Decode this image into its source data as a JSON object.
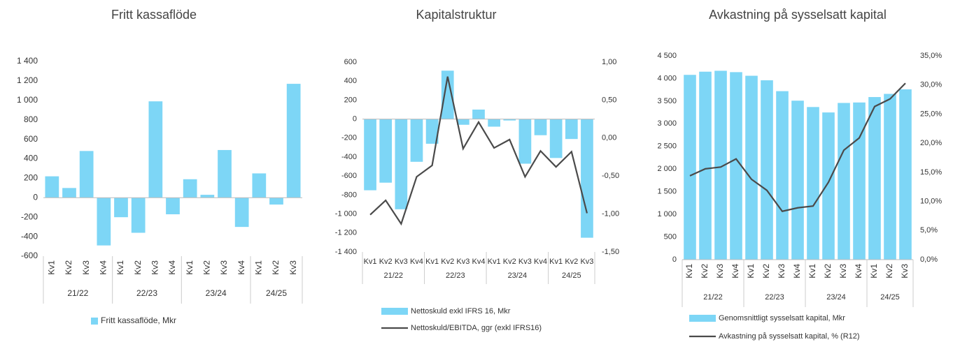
{
  "chart_data": [
    {
      "type": "bar",
      "title": "Fritt kassaflöde",
      "category_groups": [
        {
          "name": "21/22",
          "categories": [
            "Kv1",
            "Kv2",
            "Kv3",
            "Kv4"
          ]
        },
        {
          "name": "22/23",
          "categories": [
            "Kv1",
            "Kv2",
            "Kv3",
            "Kv4"
          ]
        },
        {
          "name": "23/24",
          "categories": [
            "Kv1",
            "Kv2",
            "Kv3",
            "Kv4"
          ]
        },
        {
          "name": "24/25",
          "categories": [
            "Kv1",
            "Kv2",
            "Kv3"
          ]
        }
      ],
      "series": [
        {
          "name": "Fritt kassaflöde, Mkr",
          "type": "bar",
          "color": "#7dd6f6",
          "values": [
            220,
            100,
            480,
            -490,
            -200,
            -360,
            990,
            -170,
            190,
            30,
            490,
            -300,
            250,
            -70,
            1170
          ]
        }
      ],
      "ylim": [
        -600,
        1400
      ],
      "yticks": [
        -600,
        -400,
        -200,
        0,
        200,
        400,
        600,
        800,
        {
          "value": 1000,
          "label": "1 000"
        },
        {
          "value": 1200,
          "label": "1 200"
        },
        {
          "value": 1400,
          "label": "1 400"
        }
      ],
      "legend": "bottom"
    },
    {
      "type": "combo",
      "title": "Kapitalstruktur",
      "category_groups": [
        {
          "name": "21/22",
          "categories": [
            "Kv1",
            "Kv2",
            "Kv3",
            "Kv4"
          ]
        },
        {
          "name": "22/23",
          "categories": [
            "Kv1",
            "Kv2",
            "Kv3",
            "Kv4"
          ]
        },
        {
          "name": "23/24",
          "categories": [
            "Kv1",
            "Kv2",
            "Kv3",
            "Kv4"
          ]
        },
        {
          "name": "24/25",
          "categories": [
            "Kv1",
            "Kv2",
            "Kv3"
          ]
        }
      ],
      "series": [
        {
          "name": "Nettoskuld exkl IFRS 16, Mkr",
          "type": "bar",
          "color": "#7dd6f6",
          "values": [
            -750,
            -670,
            -950,
            -450,
            -260,
            510,
            -60,
            100,
            -80,
            -15,
            -470,
            -170,
            -410,
            -210,
            -1250
          ]
        },
        {
          "name": "Nettoskuld/EBITDA, ggr (exkl IFRS16)",
          "type": "line",
          "axis": "y2",
          "color": "#4a4a4a",
          "values": [
            -1.01,
            -0.82,
            -1.13,
            -0.51,
            -0.36,
            0.81,
            -0.14,
            0.21,
            -0.13,
            -0.02,
            -0.51,
            -0.17,
            -0.38,
            -0.18,
            -0.99
          ]
        }
      ],
      "ylim": [
        -1400,
        600
      ],
      "yticks": [
        {
          "value": -1400,
          "label": "-1 400"
        },
        {
          "value": -1200,
          "label": "-1 200"
        },
        {
          "value": -1000,
          "label": "-1 000"
        },
        -800,
        -600,
        -400,
        -200,
        0,
        200,
        400,
        600
      ],
      "y2lim": [
        -1.5,
        1.0
      ],
      "y2ticks": [
        {
          "value": -1.5,
          "label": "-1,50"
        },
        {
          "value": -1.0,
          "label": "-1,00"
        },
        {
          "value": -0.5,
          "label": "-0,50"
        },
        {
          "value": 0,
          "label": "0,00"
        },
        {
          "value": 0.5,
          "label": "0,50"
        },
        {
          "value": 1.0,
          "label": "1,00"
        }
      ],
      "legend": "bottom"
    },
    {
      "type": "combo",
      "title": "Avkastning på sysselsatt kapital",
      "category_groups": [
        {
          "name": "21/22",
          "categories": [
            "Kv1",
            "Kv2",
            "Kv3",
            "Kv4"
          ]
        },
        {
          "name": "22/23",
          "categories": [
            "Kv1",
            "Kv2",
            "Kv3",
            "Kv4"
          ]
        },
        {
          "name": "23/24",
          "categories": [
            "Kv1",
            "Kv2",
            "Kv3",
            "Kv4"
          ]
        },
        {
          "name": "24/25",
          "categories": [
            "Kv1",
            "Kv2",
            "Kv3"
          ]
        }
      ],
      "series": [
        {
          "name": "Genomsnittligt sysselsatt kapital, Mkr",
          "type": "bar",
          "color": "#7dd6f6",
          "values": [
            4080,
            4150,
            4170,
            4140,
            4060,
            3960,
            3720,
            3510,
            3370,
            3250,
            3460,
            3470,
            3590,
            3660,
            3760
          ]
        },
        {
          "name": "Avkastning på sysselsatt kapital, % (R12)",
          "type": "line",
          "axis": "y2",
          "color": "#4a4a4a",
          "values": [
            14.4,
            15.6,
            15.9,
            17.3,
            13.8,
            11.9,
            8.3,
            8.9,
            9.2,
            13.3,
            18.8,
            20.9,
            26.3,
            27.6,
            30.3
          ]
        }
      ],
      "ylim": [
        0,
        4500
      ],
      "yticks": [
        0,
        500,
        {
          "value": 1000,
          "label": "1 000"
        },
        {
          "value": 1500,
          "label": "1 500"
        },
        {
          "value": 2000,
          "label": "2 000"
        },
        {
          "value": 2500,
          "label": "2 500"
        },
        {
          "value": 3000,
          "label": "3 000"
        },
        {
          "value": 3500,
          "label": "3 500"
        },
        {
          "value": 4000,
          "label": "4 000"
        },
        {
          "value": 4500,
          "label": "4 500"
        }
      ],
      "y2lim": [
        0,
        35
      ],
      "y2ticks": [
        {
          "value": 0,
          "label": "0,0%"
        },
        {
          "value": 5,
          "label": "5,0%"
        },
        {
          "value": 10,
          "label": "10,0%"
        },
        {
          "value": 15,
          "label": "15,0%"
        },
        {
          "value": 20,
          "label": "20,0%"
        },
        {
          "value": 25,
          "label": "25,0%"
        },
        {
          "value": 30,
          "label": "30,0%"
        },
        {
          "value": 35,
          "label": "35,0%"
        }
      ],
      "legend": "bottom"
    }
  ]
}
